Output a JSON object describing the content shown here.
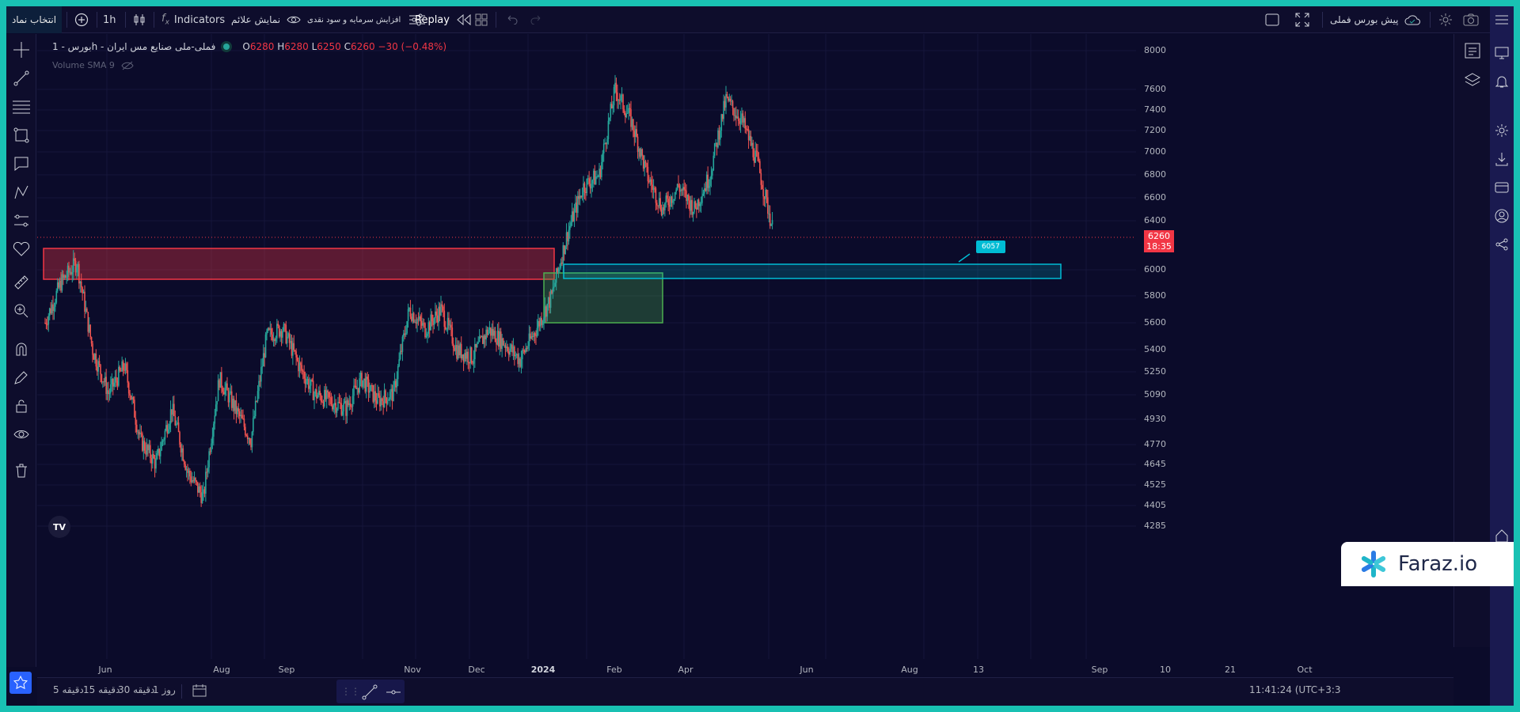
{
  "toolbar": {
    "symbol_search": "انتخاب نماد",
    "interval": "1h",
    "indicators": "Indicators",
    "show_signals": "نمایش علائم",
    "capital_increase": "افزایش سرمایه و سود نقدی",
    "replay": "Replay",
    "prediction": "پیش بورس فملی"
  },
  "legend": {
    "title": "بورس - 1h - فملی-ملی صنایع مس ایران",
    "o_key": "O",
    "o_val": "6280",
    "h_key": "H",
    "h_val": "6280",
    "l_key": "L",
    "l_val": "6250",
    "c_key": "C",
    "c_val": "6260",
    "change": "−30 (−0.48%)",
    "volume": "Volume SMA 9"
  },
  "price_axis": [
    "8000",
    "7600",
    "7400",
    "7200",
    "7000",
    "6800",
    "6600",
    "6400",
    "6000",
    "5800",
    "5600",
    "5400",
    "5250",
    "5090",
    "4930",
    "4770",
    "4645",
    "4525",
    "4405",
    "4285"
  ],
  "current_price": {
    "price": "6260",
    "countdown": "18:35"
  },
  "note_label": "6057",
  "time_axis": [
    "Jun",
    "Aug",
    "Sep",
    "Nov",
    "Dec",
    "2024",
    "Feb",
    "Apr",
    "Jun",
    "Aug",
    "13",
    "Sep",
    "10",
    "21",
    "Oct"
  ],
  "bottom": {
    "ranges": [
      "5 دقیقه",
      "15 دقیقه",
      "30 دقیقه",
      "1 روز"
    ],
    "clock": "11:41:24 (UTC+3:3"
  },
  "watermark": "Faraz.io",
  "colors": {
    "up": "#26a69a",
    "down": "#ef5350",
    "background": "#0b0b2a",
    "supply_zone": "#f23645",
    "demand_zone": "#4caf50",
    "target_zone": "#00bcd4",
    "accent": "#2962ff"
  },
  "chart_data": {
    "type": "candlestick",
    "series_price_path": [
      [
        "May",
        5600
      ],
      [
        "May",
        5900
      ],
      [
        "May",
        6060
      ],
      [
        "Jun",
        5400
      ],
      [
        "Jun",
        5100
      ],
      [
        "Jun",
        5290
      ],
      [
        "Jul",
        4800
      ],
      [
        "Jul",
        4650
      ],
      [
        "Jul",
        5000
      ],
      [
        "Aug",
        4600
      ],
      [
        "Aug",
        4450
      ],
      [
        "Aug",
        5200
      ],
      [
        "Aug",
        5000
      ],
      [
        "Sep",
        4800
      ],
      [
        "Sep",
        5500
      ],
      [
        "Sep",
        5560
      ],
      [
        "Oct",
        5300
      ],
      [
        "Oct",
        5100
      ],
      [
        "Nov",
        5050
      ],
      [
        "Nov",
        5000
      ],
      [
        "Nov",
        5200
      ],
      [
        "Dec",
        5050
      ],
      [
        "Dec",
        5100
      ],
      [
        "Dec",
        5700
      ],
      [
        "Dec",
        5550
      ],
      [
        "Jan",
        5700
      ],
      [
        "Jan",
        5400
      ],
      [
        "Jan",
        5350
      ],
      [
        "Jan",
        5550
      ],
      [
        "Feb",
        5450
      ],
      [
        "Feb",
        5330
      ],
      [
        "Feb",
        5550
      ],
      [
        "Feb",
        5800
      ],
      [
        "Mar",
        6300
      ],
      [
        "Mar",
        6700
      ],
      [
        "Mar",
        6800
      ],
      [
        "Apr",
        7600
      ],
      [
        "Apr",
        7300
      ],
      [
        "May",
        6800
      ],
      [
        "May",
        6500
      ],
      [
        "May",
        6700
      ],
      [
        "Jun",
        6500
      ],
      [
        "Jun",
        6800
      ],
      [
        "Jul",
        7500
      ],
      [
        "Jul",
        7300
      ],
      [
        "Jul",
        6900
      ],
      [
        "Aug",
        6300
      ]
    ],
    "current": 6260,
    "zones": [
      {
        "label": "supply",
        "from": 5930,
        "to": 6180
      },
      {
        "label": "demand",
        "from": 5620,
        "to": 5980
      },
      {
        "label": "target",
        "from": 5940,
        "to": 6060
      }
    ]
  }
}
